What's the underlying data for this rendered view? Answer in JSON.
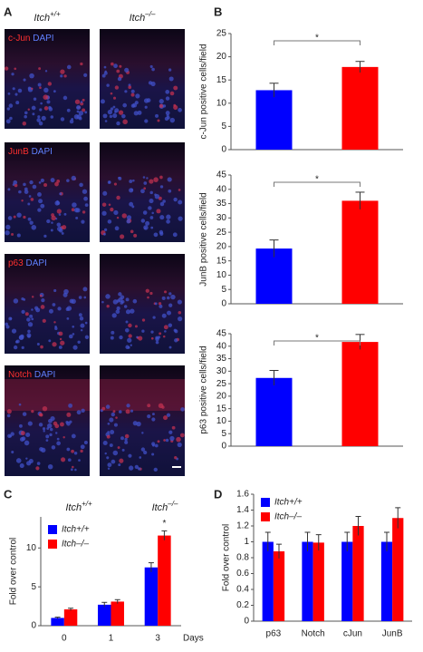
{
  "panel_labels": [
    "A",
    "B",
    "C",
    "D"
  ],
  "panel_a": {
    "genotypes": [
      {
        "base": "Itch",
        "sup": "+/+"
      },
      {
        "base": "Itch",
        "sup": "–/–"
      }
    ],
    "rows": [
      {
        "marker": "c-Jun",
        "stain": "DAPI"
      },
      {
        "marker": "JunB",
        "stain": "DAPI"
      },
      {
        "marker": "p63",
        "stain": "DAPI"
      },
      {
        "marker": "Notch",
        "stain": "DAPI"
      }
    ]
  },
  "chart_data": [
    {
      "type": "bar",
      "ylabel": "c-Jun positive cells/field",
      "categories": [
        null,
        null
      ],
      "values": [
        12.8,
        17.8
      ],
      "errors": [
        1.5,
        1.2
      ],
      "colors": [
        "#0000ff",
        "#ff0000"
      ],
      "ylim": [
        0,
        25
      ],
      "yticks": [
        0,
        5,
        10,
        15,
        20,
        25
      ],
      "annotation": "*"
    },
    {
      "type": "bar",
      "ylabel": "JunB positive cells/field",
      "categories": [
        null,
        null
      ],
      "values": [
        19.3,
        36.0
      ],
      "errors": [
        3.0,
        3.0
      ],
      "colors": [
        "#0000ff",
        "#ff0000"
      ],
      "ylim": [
        0,
        45
      ],
      "yticks": [
        0,
        5,
        10,
        15,
        20,
        25,
        30,
        35,
        40,
        45
      ],
      "annotation": "*"
    },
    {
      "type": "bar",
      "ylabel": "p63 positive cells/field",
      "categories": [
        null,
        null
      ],
      "values": [
        27.3,
        41.7
      ],
      "errors": [
        3.0,
        3.0
      ],
      "colors": [
        "#0000ff",
        "#ff0000"
      ],
      "ylim": [
        0,
        45
      ],
      "yticks": [
        0,
        5,
        10,
        15,
        20,
        25,
        30,
        35,
        40,
        45
      ],
      "annotation": "*"
    },
    {
      "type": "grouped_bar",
      "ylabel": "Fold over control",
      "xlabel": "Days",
      "column_titles": [
        {
          "base": "Itch",
          "sup": "+/+"
        },
        {
          "base": "Itch",
          "sup": "–/–"
        }
      ],
      "categories": [
        "0",
        "1",
        "3"
      ],
      "series": [
        {
          "name": "Itch+/+",
          "color": "#0000ff",
          "values": [
            1.0,
            2.7,
            7.5
          ],
          "errors": [
            0.1,
            0.3,
            0.6
          ]
        },
        {
          "name": "Itch–/–",
          "color": "#ff0000",
          "values": [
            2.1,
            3.1,
            11.6
          ],
          "errors": [
            0.15,
            0.25,
            0.6
          ]
        }
      ],
      "ylim": [
        0,
        14
      ],
      "yticks": [
        0,
        5,
        10
      ],
      "annotation": "*"
    },
    {
      "type": "grouped_bar",
      "ylabel": "Fold over control",
      "categories": [
        "p63",
        "Notch",
        "cJun",
        "JunB"
      ],
      "series": [
        {
          "name": "Itch+/+",
          "color": "#0000ff",
          "values": [
            1.0,
            1.0,
            1.0,
            1.0
          ],
          "errors": [
            0.12,
            0.12,
            0.12,
            0.12
          ]
        },
        {
          "name": "Itch–/–",
          "color": "#ff0000",
          "values": [
            0.88,
            0.99,
            1.2,
            1.3
          ],
          "errors": [
            0.09,
            0.1,
            0.12,
            0.13
          ]
        }
      ],
      "ylim": [
        0,
        1.6
      ],
      "yticks": [
        0,
        0.2,
        0.4,
        0.6,
        0.8,
        1,
        1.2,
        1.4,
        1.6
      ]
    }
  ]
}
